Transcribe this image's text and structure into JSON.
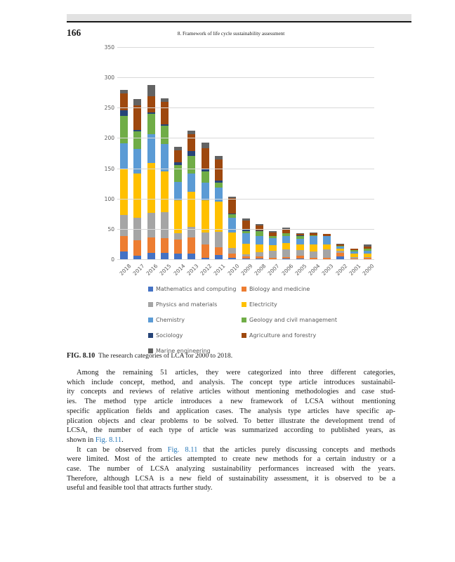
{
  "page": {
    "number": "166",
    "running_head": "8.  Framework of life cycle sustainability assessment"
  },
  "figure": {
    "caption_label": "FIG. 8.10",
    "caption_text": "The research categories of LCA for 2000 to 2018."
  },
  "chart_data": {
    "type": "bar",
    "stacked": true,
    "title": "",
    "xlabel": "",
    "ylabel": "",
    "ylim": [
      0,
      350
    ],
    "ytick_step": 50,
    "grid": true,
    "legend_position": "bottom",
    "categories": [
      "2018",
      "2017",
      "2016",
      "2015",
      "2014",
      "2013",
      "2012",
      "2011",
      "2010",
      "2009",
      "2008",
      "2007",
      "2006",
      "2005",
      "2004",
      "2003",
      "2002",
      "2001",
      "2000"
    ],
    "series": [
      {
        "name": "Mathematics and computing",
        "color": "#4472C4",
        "values": [
          14,
          7,
          12,
          12,
          10,
          10,
          3,
          8,
          3,
          2,
          2,
          1,
          2,
          2,
          1,
          1,
          6,
          1,
          1
        ]
      },
      {
        "name": "Biology and medicine",
        "color": "#ED7D31",
        "values": [
          25,
          26,
          25,
          24,
          24,
          27,
          22,
          13,
          8,
          4,
          4,
          3,
          3,
          5,
          2,
          2,
          6,
          1,
          2
        ]
      },
      {
        "name": "Physics and materials",
        "color": "#A5A5A5",
        "values": [
          35,
          37,
          41,
          43,
          10,
          18,
          20,
          25,
          9,
          3,
          7,
          11,
          12,
          9,
          11,
          14,
          3,
          3,
          2
        ]
      },
      {
        "name": "Electricity",
        "color": "#FFC000",
        "values": [
          75,
          73,
          82,
          67,
          55,
          57,
          53,
          50,
          25,
          18,
          13,
          9,
          11,
          10,
          11,
          9,
          4,
          6,
          6
        ]
      },
      {
        "name": "Chemistry",
        "color": "#5B9BD5",
        "values": [
          43,
          40,
          47,
          45,
          30,
          31,
          30,
          23,
          25,
          17,
          13,
          12,
          12,
          9,
          14,
          13,
          3,
          3,
          4
        ]
      },
      {
        "name": "Geology and civil management",
        "color": "#70AD47",
        "values": [
          46,
          29,
          34,
          30,
          28,
          28,
          18,
          9,
          5,
          4,
          8,
          3,
          4,
          4,
          2,
          1,
          1,
          2,
          3
        ]
      },
      {
        "name": "Sociology",
        "color": "#264478",
        "values": [
          9,
          3,
          2,
          3,
          4,
          9,
          4,
          3,
          2,
          3,
          2,
          1,
          0,
          2,
          0,
          0,
          0,
          0,
          0
        ]
      },
      {
        "name": "Agriculture and forestry",
        "color": "#9E480E",
        "values": [
          28,
          40,
          27,
          37,
          20,
          28,
          34,
          35,
          25,
          14,
          8,
          5,
          6,
          2,
          3,
          3,
          3,
          2,
          4
        ]
      },
      {
        "name": "Marine engineering",
        "color": "#636363",
        "values": [
          5,
          10,
          19,
          6,
          6,
          5,
          9,
          5,
          2,
          3,
          2,
          2,
          3,
          1,
          1,
          0,
          1,
          0,
          3
        ]
      }
    ]
  },
  "main": {
    "paragraphs": [
      {
        "lines": [
          [
            {
              "t": "Among the remaining 51 articles, they were categorized into three different categories,"
            }
          ],
          [
            {
              "t": "which include concept, method, and analysis. The concept type article introduces sustainabil-"
            }
          ],
          [
            {
              "t": "ity concepts and reviews of relative articles without mentioning methodologies and case stud-"
            }
          ],
          [
            {
              "t": "ies. The method type article introduces a new framework of LCSA without mentioning"
            }
          ],
          [
            {
              "t": "specific application fields and application cases. The analysis type articles have specific ap-"
            }
          ],
          [
            {
              "t": "plication objects and clear problems to be solved. To better illustrate the development trend of"
            }
          ],
          [
            {
              "t": "LCSA, the number of each type of article was summarized according to published years, as"
            }
          ],
          [
            {
              "t": "shown in "
            },
            {
              "t": "Fig. 8.11",
              "link": true
            },
            {
              "t": "."
            }
          ]
        ]
      },
      {
        "lines": [
          [
            {
              "t": "It can be observed from "
            },
            {
              "t": "Fig. 8.11",
              "link": true
            },
            {
              "t": " that the articles purely discussing concepts and methods"
            }
          ],
          [
            {
              "t": "were limited. Most of the articles attempted to create new methods for a certain industry or a"
            }
          ],
          [
            {
              "t": "case. The number of LCSA analyzing sustainability performances increased with the years."
            }
          ],
          [
            {
              "t": "Therefore, although LCSA is a new field of sustainability assessment, it is observed to be a"
            }
          ],
          [
            {
              "t": "useful and feasible tool that attracts further study."
            }
          ]
        ]
      }
    ]
  },
  "colors": {
    "link": "#2878b8",
    "gridline": "#d9d9d9",
    "axis_text": "#595959"
  }
}
